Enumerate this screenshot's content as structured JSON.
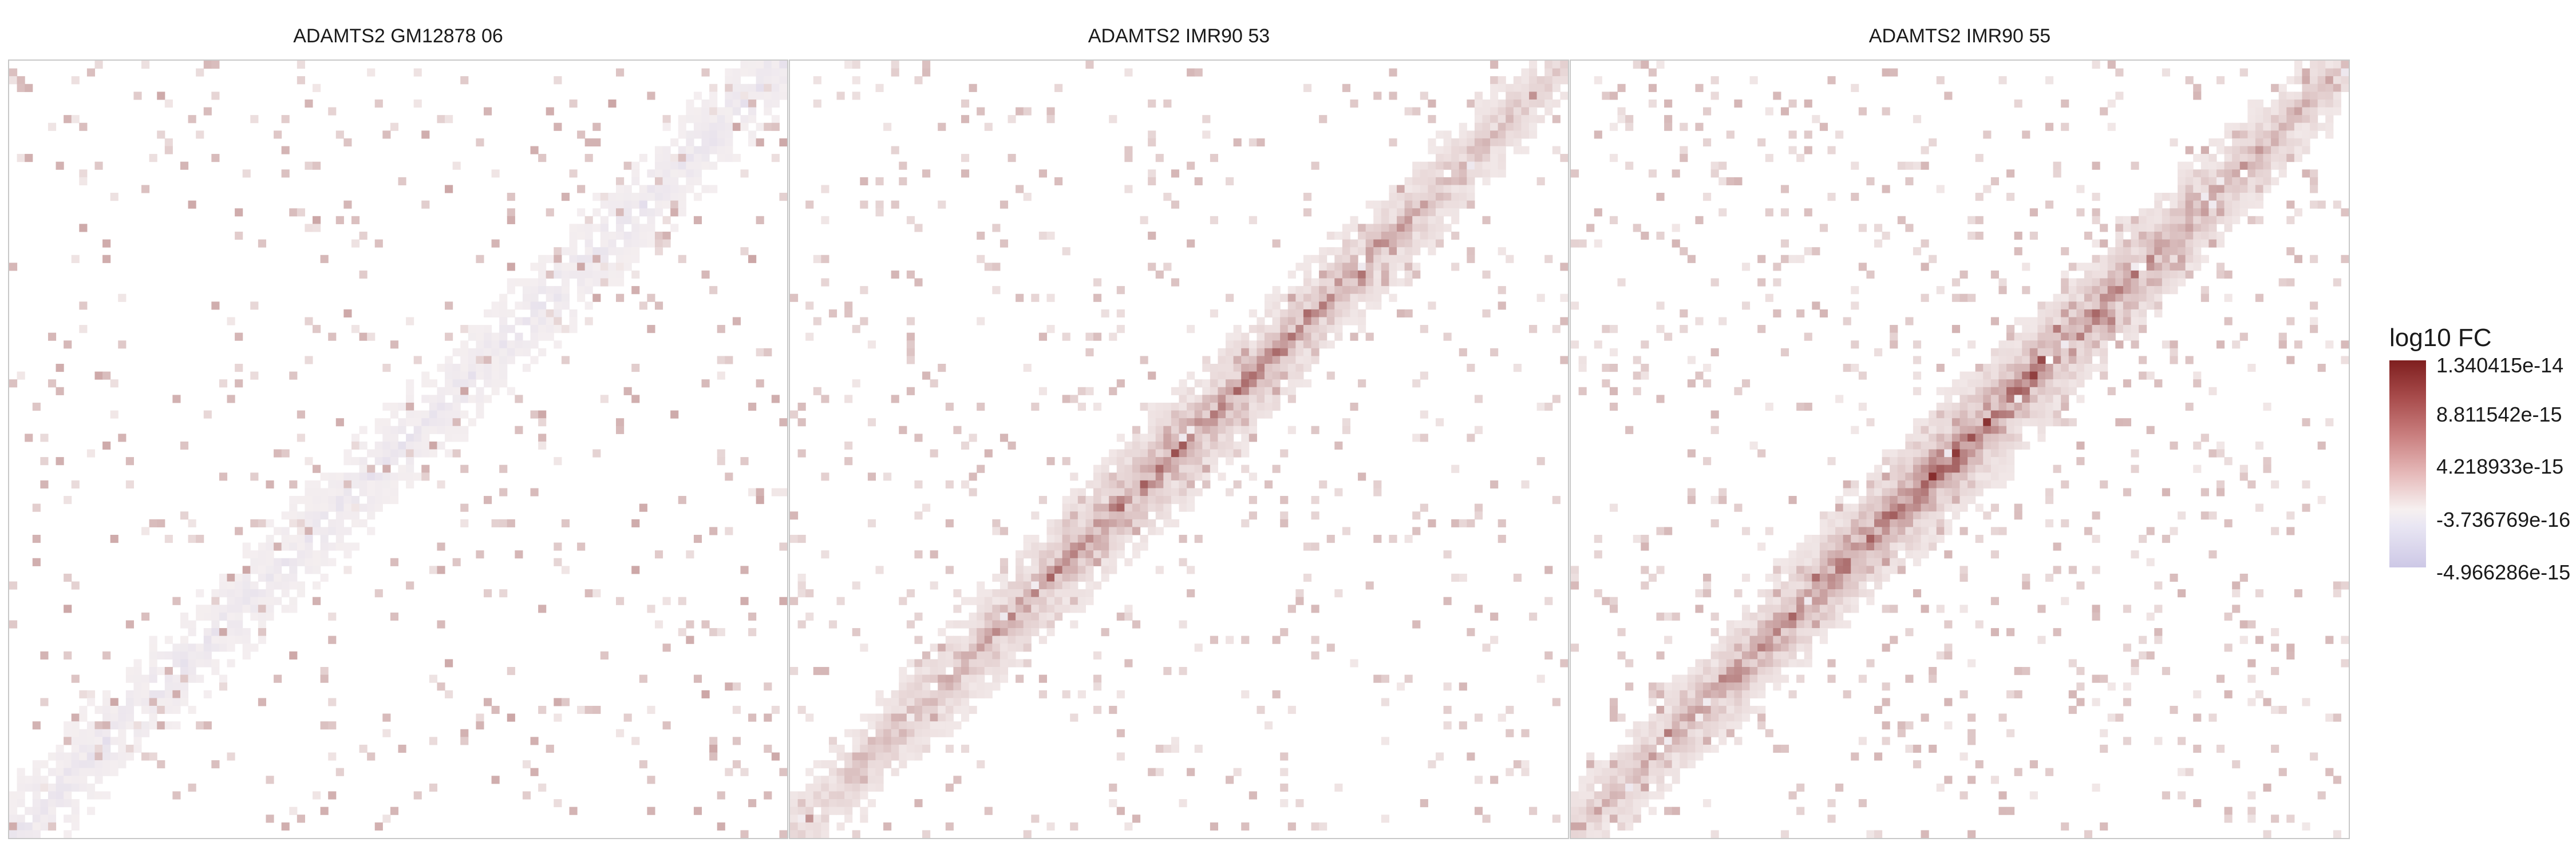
{
  "chart_data": {
    "type": "heatmap",
    "panels": [
      {
        "title": "ADAMTS2 GM12878 06",
        "intensity": 0.22,
        "negativeDiag": true,
        "seed": 11
      },
      {
        "title": "ADAMTS2 IMR90 53",
        "intensity": 0.78,
        "negativeDiag": false,
        "seed": 29
      },
      {
        "title": "ADAMTS2 IMR90 55",
        "intensity": 1.0,
        "negativeDiag": false,
        "seed": 47
      }
    ],
    "grid_size": 100,
    "legend": {
      "title": "log10 FC",
      "labels": [
        "1.340415e-14",
        "8.811542e-15",
        "4.218933e-15",
        "-3.736769e-16",
        "-4.966286e-15"
      ],
      "min": -4.966286e-15,
      "max": 1.340415e-14
    },
    "colors": {
      "high": "#7f1f1f",
      "mid": "#f6f0f0",
      "low": "#cdc8e6"
    }
  }
}
